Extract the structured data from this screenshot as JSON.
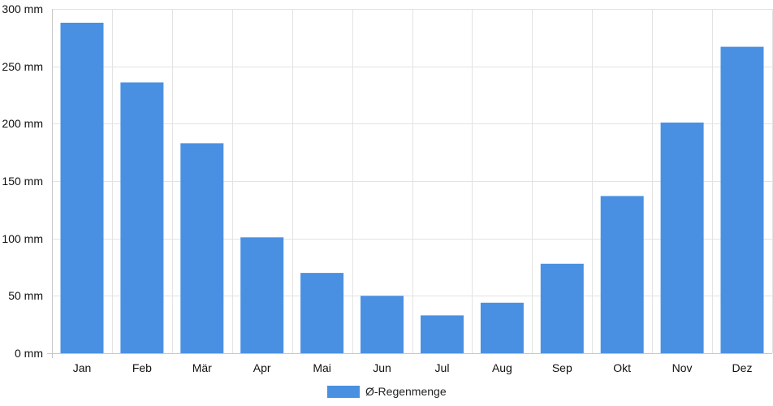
{
  "chart_data": {
    "type": "bar",
    "categories": [
      "Jan",
      "Feb",
      "Mär",
      "Apr",
      "Mai",
      "Jun",
      "Jul",
      "Aug",
      "Sep",
      "Okt",
      "Nov",
      "Dez"
    ],
    "series": [
      {
        "name": "Ø-Regenmenge",
        "values": [
          288,
          236,
          183,
          101,
          70,
          50,
          33,
          44,
          78,
          137,
          201,
          267
        ],
        "color": "#4a90e2"
      }
    ],
    "y_unit": "mm",
    "ylim": [
      0,
      300
    ],
    "y_ticks": [
      0,
      50,
      100,
      150,
      200,
      250,
      300
    ],
    "y_tick_labels": [
      "0 mm",
      "50 mm",
      "100 mm",
      "150 mm",
      "200 mm",
      "250 mm",
      "300 mm"
    ],
    "grid": true,
    "legend_position": "bottom-center"
  }
}
